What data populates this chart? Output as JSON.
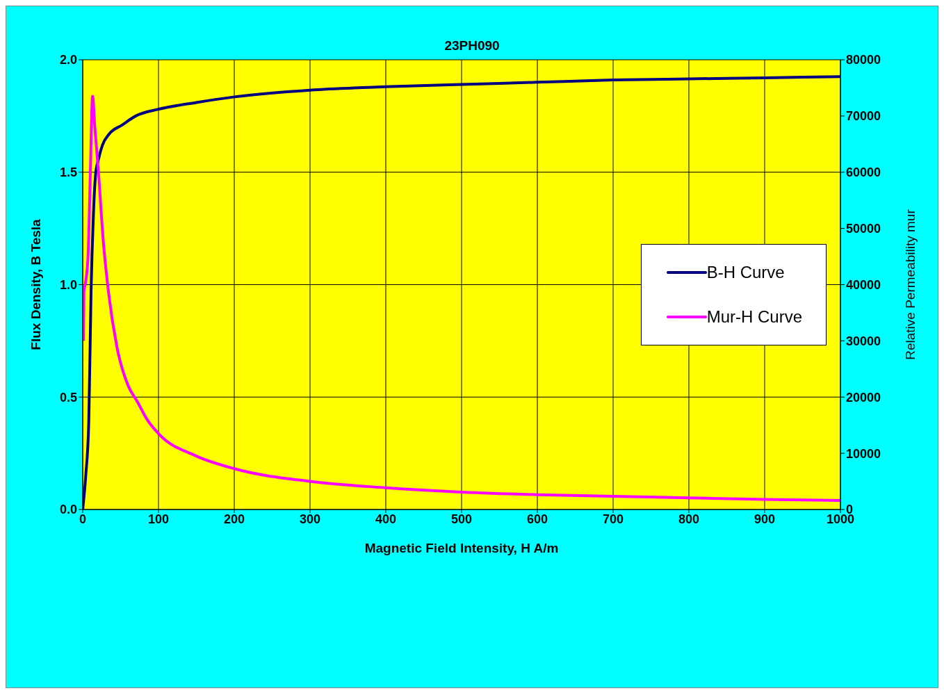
{
  "chart_data": {
    "type": "line",
    "title": "23PH090",
    "xlabel": "Magnetic Field Intensity, H A/m",
    "ylabel": "Flux Density, B Tesla",
    "y2label": "Relative Permeability mur",
    "xlim": [
      0,
      1000
    ],
    "xticks": [
      0,
      100,
      200,
      300,
      400,
      500,
      600,
      700,
      800,
      900,
      1000
    ],
    "ylim": [
      0,
      2
    ],
    "yticks": [
      {
        "value": 0,
        "label": "0.0"
      },
      {
        "value": 0.5,
        "label": "0.5"
      },
      {
        "value": 1,
        "label": "1.0"
      },
      {
        "value": 1.5,
        "label": "1.5"
      },
      {
        "value": 2,
        "label": "2.0"
      }
    ],
    "y2lim": [
      0,
      80000
    ],
    "y2ticks": [
      0,
      10000,
      20000,
      30000,
      40000,
      50000,
      60000,
      70000,
      80000
    ],
    "grid": true,
    "legend": "right",
    "marker": "none",
    "line_style": "solid",
    "series": [
      {
        "name": "B-H Curve",
        "color": "#000080",
        "x": [
          0,
          4,
          8,
          11,
          14,
          17,
          21,
          26,
          35,
          52,
          70,
          100,
          150,
          200,
          300,
          400,
          500,
          600,
          700,
          800,
          900,
          1000
        ],
        "values": [
          0,
          0.15,
          0.39,
          0.97,
          1.3,
          1.49,
          1.56,
          1.62,
          1.67,
          1.71,
          1.75,
          1.78,
          1.81,
          1.835,
          1.865,
          1.88,
          1.89,
          1.9,
          1.91,
          1.915,
          1.92,
          1.925
        ]
      },
      {
        "name": "Mur-H Curve",
        "color": "#ff00ff",
        "axis": "y2",
        "x": [
          1,
          1.5,
          3.5,
          7,
          10,
          13,
          16,
          21,
          27,
          34,
          45,
          60,
          72,
          85,
          100,
          150,
          200,
          300,
          400,
          500,
          600,
          700,
          800,
          900,
          1000
        ],
        "values": [
          30000,
          38700,
          40200,
          45000,
          59600,
          73500,
          68000,
          59600,
          48000,
          38700,
          29000,
          22000,
          19200,
          16000,
          13500,
          9500,
          7260,
          5000,
          3870,
          3100,
          2640,
          2360,
          2070,
          1800,
          1600
        ]
      }
    ]
  }
}
